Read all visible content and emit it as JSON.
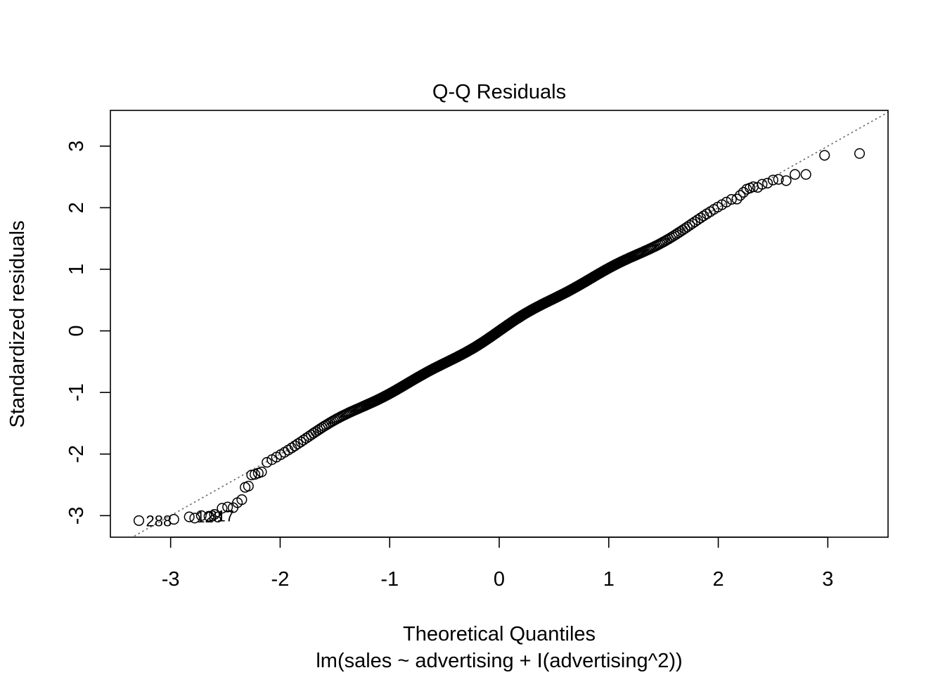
{
  "chart_data": {
    "type": "scatter",
    "title": "Q-Q Residuals",
    "xlabel": "Theoretical Quantiles",
    "subtitle": "lm(sales ~ advertising + I(advertising^2))",
    "ylabel": "Standardized residuals",
    "xlim": [
      -3.55,
      3.55
    ],
    "ylim": [
      -3.35,
      3.58
    ],
    "x_ticks": [
      -3,
      -2,
      -1,
      0,
      1,
      2,
      3
    ],
    "x_tick_labels": [
      "-3",
      "-2",
      "-1",
      "0",
      "1",
      "2",
      "3"
    ],
    "y_ticks": [
      -3,
      -2,
      -1,
      0,
      1,
      2,
      3
    ],
    "y_tick_labels": [
      "-3",
      "-2",
      "-1",
      "0",
      "1",
      "2",
      "3"
    ],
    "reference_line": {
      "slope": 1.0,
      "intercept": 0.0,
      "style": "dotted",
      "color": "#666666"
    },
    "point_count": 500,
    "point_style": "open-circle",
    "tail_points": {
      "lower": [
        [
          -3.29,
          -3.08
        ],
        [
          -2.97,
          -3.06
        ],
        [
          -2.83,
          -3.02
        ],
        [
          -2.78,
          -3.04
        ],
        [
          -2.72,
          -3.0
        ],
        [
          -2.65,
          -3.01
        ],
        [
          -2.6,
          -2.98
        ],
        [
          -2.53,
          -2.88
        ],
        [
          -2.48,
          -2.86
        ],
        [
          -2.43,
          -2.87
        ],
        [
          -2.39,
          -2.79
        ],
        [
          -2.35,
          -2.74
        ],
        [
          -2.32,
          -2.54
        ],
        [
          -2.29,
          -2.52
        ],
        [
          -2.26,
          -2.34
        ],
        [
          -2.23,
          -2.33
        ],
        [
          -2.2,
          -2.31
        ],
        [
          -2.17,
          -2.29
        ]
      ],
      "upper": [
        [
          2.17,
          2.14
        ],
        [
          2.2,
          2.2
        ],
        [
          2.23,
          2.25
        ],
        [
          2.26,
          2.3
        ],
        [
          2.29,
          2.32
        ],
        [
          2.32,
          2.34
        ],
        [
          2.36,
          2.33
        ],
        [
          2.4,
          2.38
        ],
        [
          2.45,
          2.4
        ],
        [
          2.5,
          2.45
        ],
        [
          2.55,
          2.46
        ],
        [
          2.62,
          2.44
        ],
        [
          2.7,
          2.54
        ],
        [
          2.8,
          2.54
        ],
        [
          2.97,
          2.85
        ],
        [
          3.29,
          2.88
        ]
      ]
    },
    "point_labels": [
      {
        "label": "288",
        "x": -3.29,
        "y": -3.08
      },
      {
        "label": "128",
        "x": -2.83,
        "y": -3.02
      },
      {
        "label": "317",
        "x": -2.72,
        "y": -3.0
      }
    ],
    "grid": false,
    "legend": "none"
  }
}
